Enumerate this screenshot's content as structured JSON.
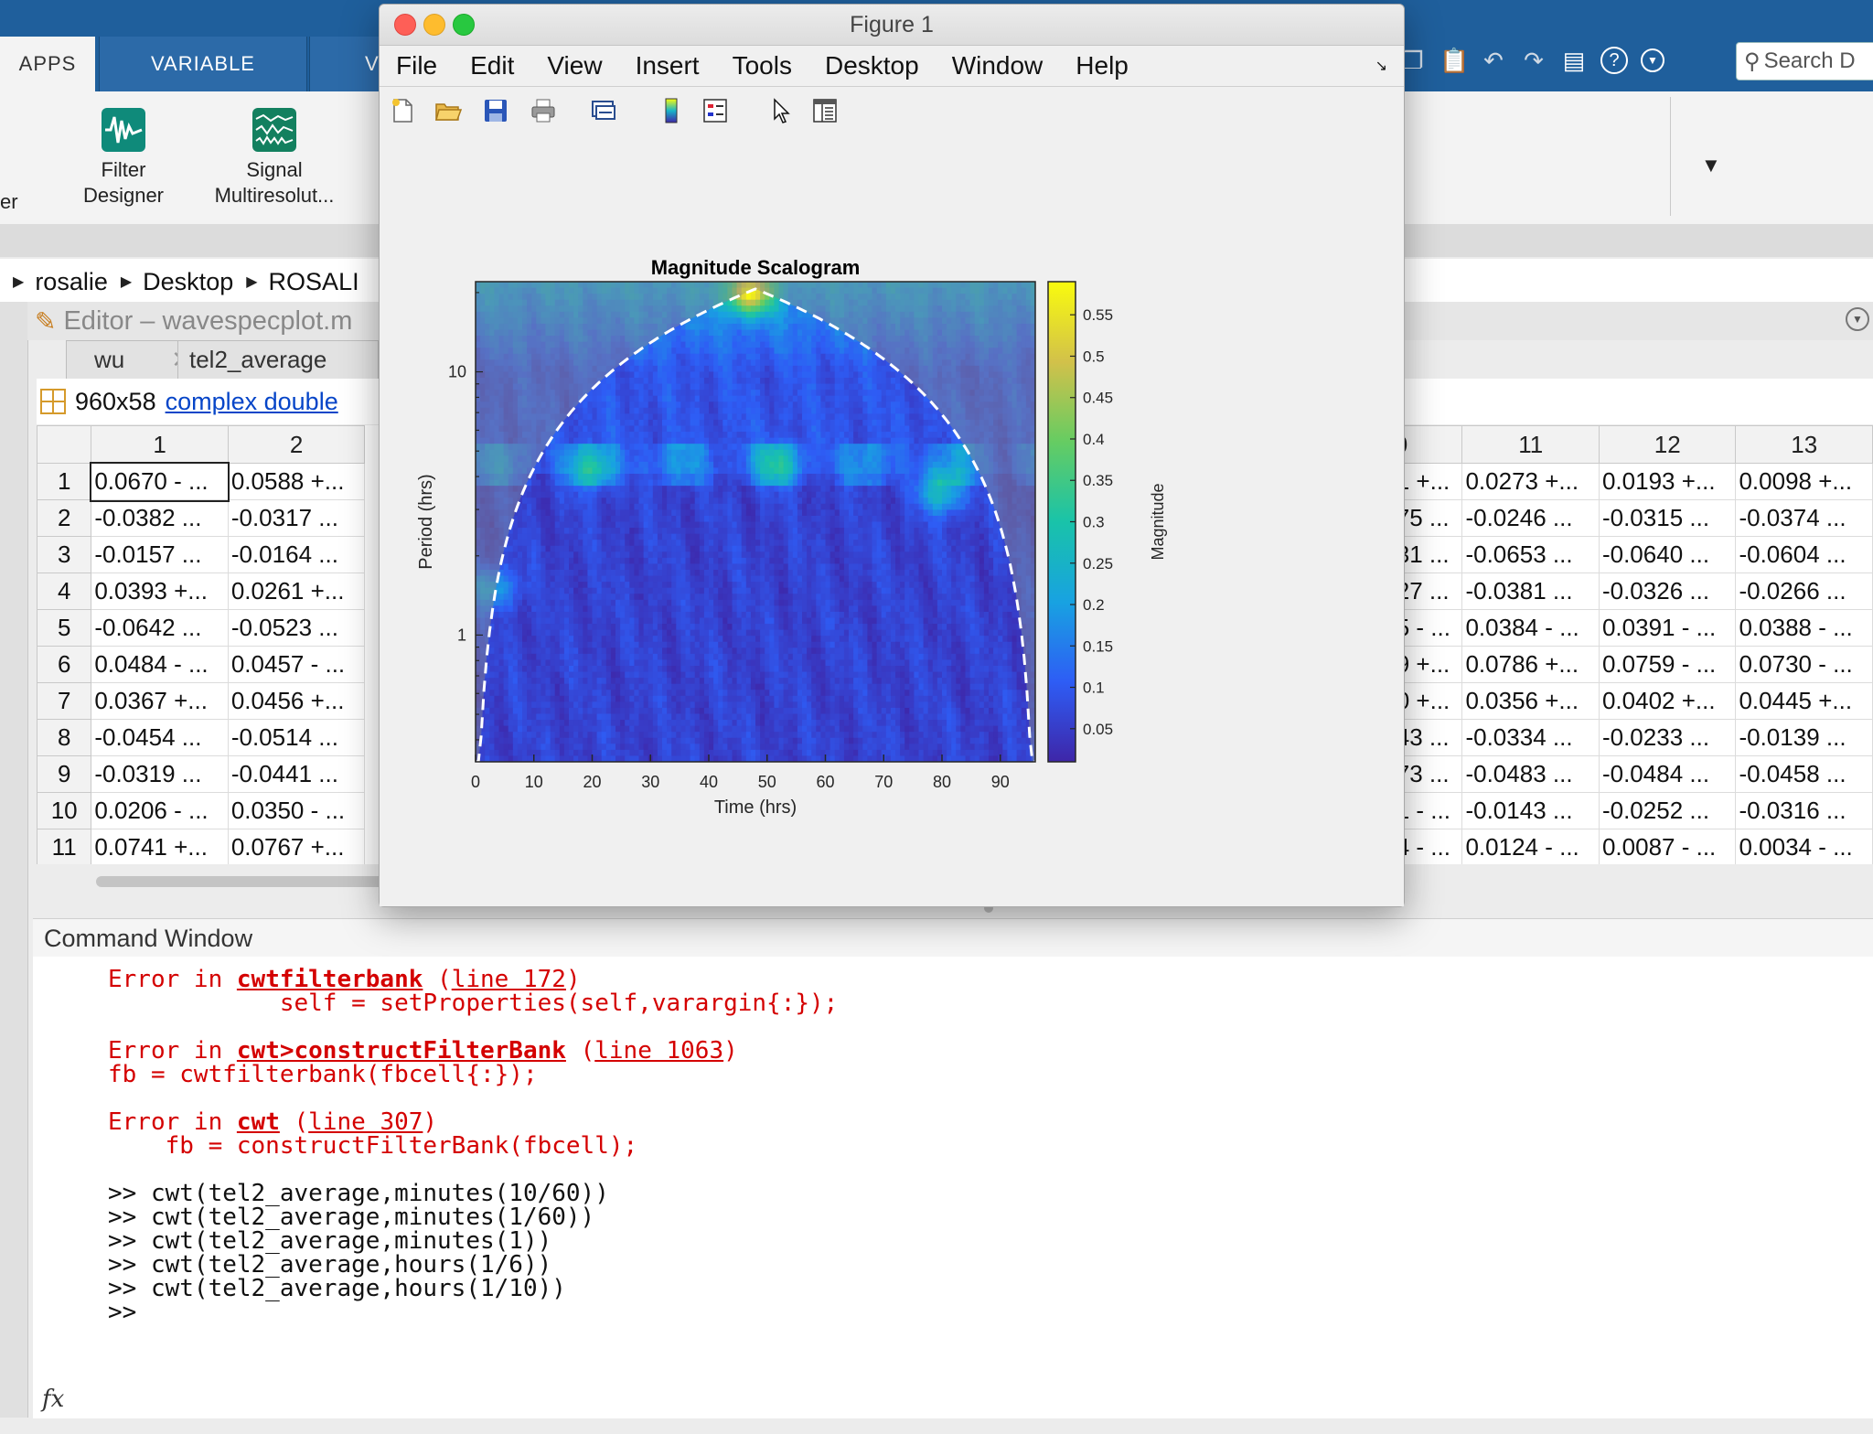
{
  "toolstrip": {
    "tabs": [
      "APPS",
      "VARIABLE",
      "V"
    ],
    "apps": [
      {
        "line1": "Filter",
        "line2": "Designer",
        "icon": "filter-designer-icon"
      },
      {
        "line1": "Signal",
        "line2": "Multiresolut...",
        "icon": "signal-multiresolution-icon"
      }
    ],
    "left_fragment": "er",
    "search_placeholder": "Search D"
  },
  "address": [
    "rosalie",
    "Desktop",
    "ROSALI"
  ],
  "editor": {
    "title": "Editor – wavespecplot.m",
    "tabs": [
      "wu",
      "tel2_average"
    ],
    "var_size": "960x58",
    "var_type": "complex double"
  },
  "table": {
    "left_columns": [
      "1",
      "2"
    ],
    "right_columns": [
      "0",
      "11",
      "12",
      "13"
    ],
    "rows": [
      {
        "n": "1",
        "c1": "0.0670 - ...",
        "c2": "0.0588 +...",
        "r10": "1 +...",
        "r11": "0.0273 +...",
        "r12": "0.0193 +...",
        "r13": "0.0098 +..."
      },
      {
        "n": "2",
        "c1": "-0.0382 ...",
        "c2": "-0.0317 ...",
        "r10": "75 ...",
        "r11": "-0.0246 ...",
        "r12": "-0.0315 ...",
        "r13": "-0.0374 ..."
      },
      {
        "n": "3",
        "c1": "-0.0157 ...",
        "c2": "-0.0164 ...",
        "r10": "31 ...",
        "r11": "-0.0653 ...",
        "r12": "-0.0640 ...",
        "r13": "-0.0604 ..."
      },
      {
        "n": "4",
        "c1": "0.0393 +...",
        "c2": "0.0261 +...",
        "r10": "27 ...",
        "r11": "-0.0381 ...",
        "r12": "-0.0326 ...",
        "r13": "-0.0266 ..."
      },
      {
        "n": "5",
        "c1": "-0.0642 ...",
        "c2": "-0.0523 ...",
        "r10": "5 - ...",
        "r11": "0.0384 - ...",
        "r12": "0.0391 - ...",
        "r13": "0.0388 - ..."
      },
      {
        "n": "6",
        "c1": "0.0484 - ...",
        "c2": "0.0457 - ...",
        "r10": "9 +...",
        "r11": "0.0786 +...",
        "r12": "0.0759 - ...",
        "r13": "0.0730 - ..."
      },
      {
        "n": "7",
        "c1": "0.0367 +...",
        "c2": "0.0456 +...",
        "r10": "0 +...",
        "r11": "0.0356 +...",
        "r12": "0.0402 +...",
        "r13": "0.0445 +..."
      },
      {
        "n": "8",
        "c1": "-0.0454 ...",
        "c2": "-0.0514 ...",
        "r10": "43 ...",
        "r11": "-0.0334 ...",
        "r12": "-0.0233 ...",
        "r13": "-0.0139 ..."
      },
      {
        "n": "9",
        "c1": "-0.0319 ...",
        "c2": "-0.0441 ...",
        "r10": "73 ...",
        "r11": "-0.0483 ...",
        "r12": "-0.0484 ...",
        "r13": "-0.0458 ..."
      },
      {
        "n": "10",
        "c1": "0.0206 - ...",
        "c2": "0.0350 - ...",
        "r10": "1 - ...",
        "r11": "-0.0143 ...",
        "r12": "-0.0252 ...",
        "r13": "-0.0316 ..."
      },
      {
        "n": "11",
        "c1": "0.0741 +...",
        "c2": "0.0767 +...",
        "r10": "4 - ...",
        "r11": "0.0124 - ...",
        "r12": "0.0087 - ...",
        "r13": "0.0034 - ..."
      }
    ]
  },
  "command_window": {
    "title": "Command Window",
    "lines": [
      {
        "type": "err",
        "parts": [
          "Error in ",
          "cwtfilterbank",
          " (",
          "line 172",
          ")"
        ]
      },
      {
        "type": "err_code",
        "text": "            self = setProperties(self,varargin{:});"
      },
      {
        "type": "blank",
        "text": ""
      },
      {
        "type": "err",
        "parts": [
          "Error in ",
          "cwt>constructFilterBank",
          " (",
          "line 1063",
          ")"
        ]
      },
      {
        "type": "err_code",
        "text": "fb = cwtfilterbank(fbcell{:});"
      },
      {
        "type": "blank",
        "text": ""
      },
      {
        "type": "err",
        "parts": [
          "Error in ",
          "cwt",
          " (",
          "line 307",
          ")"
        ]
      },
      {
        "type": "err_code",
        "text": "    fb = constructFilterBank(fbcell);"
      },
      {
        "type": "blank",
        "text": ""
      },
      {
        "type": "cmd",
        "text": ">> cwt(tel2_average,minutes(10/60))"
      },
      {
        "type": "cmd",
        "text": ">> cwt(tel2_average,minutes(1/60))"
      },
      {
        "type": "cmd",
        "text": ">> cwt(tel2_average,minutes(1))"
      },
      {
        "type": "cmd",
        "text": ">> cwt(tel2_average,hours(1/6))"
      },
      {
        "type": "cmd",
        "text": ">> cwt(tel2_average,hours(1/10))"
      },
      {
        "type": "cmd",
        "text": ">>"
      }
    ],
    "prompt_icon": "fx"
  },
  "figure": {
    "title": "Figure 1",
    "menu": [
      "File",
      "Edit",
      "View",
      "Insert",
      "Tools",
      "Desktop",
      "Window",
      "Help"
    ],
    "toolbar_icons": [
      "new-figure-icon",
      "open-icon",
      "save-icon",
      "print-icon",
      "link-icon",
      "colorbar-icon",
      "legend-icon",
      "pointer-icon",
      "property-inspector-icon"
    ]
  },
  "chart_data": {
    "type": "heatmap",
    "title": "Magnitude Scalogram",
    "xlabel": "Time (hrs)",
    "ylabel": "Period (hrs)",
    "x_ticks": [
      0,
      10,
      20,
      30,
      40,
      50,
      60,
      70,
      80,
      90
    ],
    "xlim": [
      0,
      96
    ],
    "y_scale": "log",
    "y_ticks": [
      1,
      10
    ],
    "ylim": [
      0.33,
      22
    ],
    "colorbar_label": "Magnitude",
    "colorbar_ticks": [
      0.05,
      0.1,
      0.15,
      0.2,
      0.25,
      0.3,
      0.35,
      0.4,
      0.45,
      0.5,
      0.55
    ],
    "colorbar_range": [
      0.01,
      0.59
    ],
    "colormap": [
      "#3e26a8",
      "#2e5df5",
      "#18a2e1",
      "#19c3a9",
      "#66cc62",
      "#d2c14a",
      "#f9fb0e"
    ],
    "cone_of_influence": "white dashed",
    "hot_spots": [
      {
        "time": 47,
        "period": 20,
        "magnitude": 0.5
      },
      {
        "time": 80,
        "period": 3.5,
        "magnitude": 0.33
      },
      {
        "time": 20,
        "period": 4.2,
        "magnitude": 0.26
      },
      {
        "time": 52,
        "period": 4.4,
        "magnitude": 0.25
      },
      {
        "time": 3,
        "period": 1.5,
        "magnitude": 0.27
      }
    ]
  }
}
